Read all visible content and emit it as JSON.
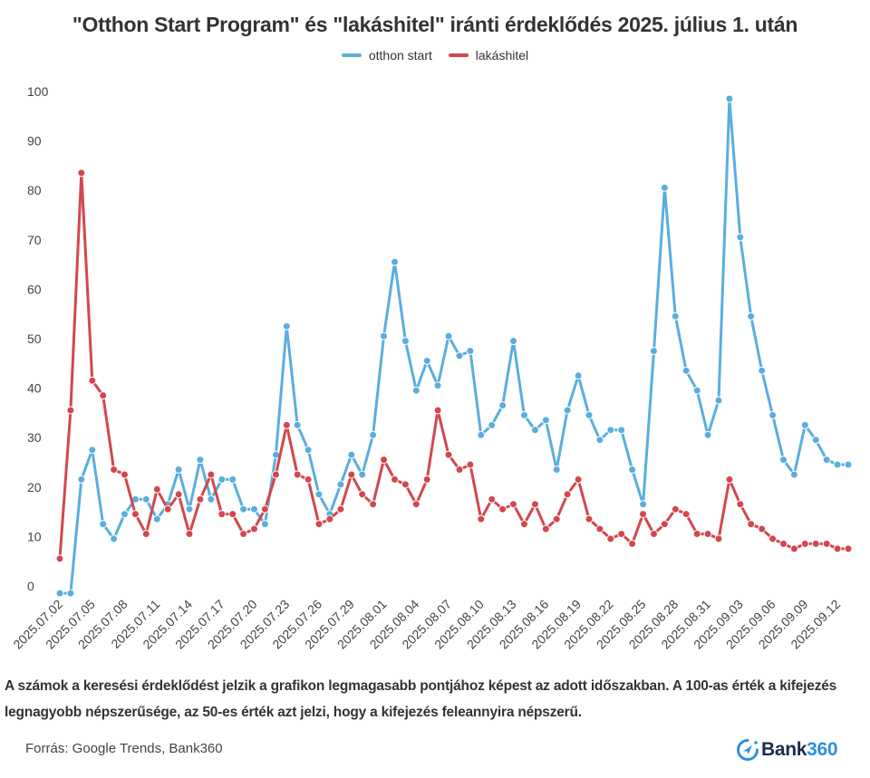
{
  "chart_data": {
    "type": "line",
    "title": "\"Otthon Start Program\" és \"lakáshitel\" iránti érdeklődés 2025. július 1. után",
    "xlabel": "",
    "ylabel": "",
    "ylim": [
      0,
      100
    ],
    "yticks": [
      0,
      10,
      20,
      30,
      40,
      50,
      60,
      70,
      80,
      90,
      100
    ],
    "grid": false,
    "legend_position": "top-center",
    "x_start": "2025.07.02",
    "x_end": "2025.09.13",
    "x_tick_labels": [
      "2025.07.02",
      "2025.07.05",
      "2025.07.08",
      "2025.07.11",
      "2025.07.14",
      "2025.07.17",
      "2025.07.20",
      "2025.07.23",
      "2025.07.26",
      "2025.07.29",
      "2025.08.01",
      "2025.08.04",
      "2025.08.07",
      "2025.08.10",
      "2025.08.13",
      "2025.08.16",
      "2025.08.19",
      "2025.08.22",
      "2025.08.25",
      "2025.08.28",
      "2025.08.31",
      "2025.09.03",
      "2025.09.06",
      "2025.09.09",
      "2025.09.12"
    ],
    "series": [
      {
        "name": "otthon start",
        "color": "#5aaedd",
        "values": [
          0,
          0,
          23,
          29,
          14,
          11,
          16,
          19,
          19,
          15,
          18,
          25,
          17,
          27,
          19,
          23,
          23,
          17,
          17,
          14,
          28,
          54,
          34,
          29,
          20,
          16,
          22,
          28,
          24,
          32,
          52,
          67,
          51,
          41,
          47,
          42,
          52,
          48,
          49,
          32,
          34,
          38,
          51,
          36,
          33,
          35,
          25,
          37,
          44,
          36,
          31,
          33,
          33,
          25,
          18,
          49,
          82,
          56,
          45,
          41,
          32,
          39,
          100,
          72,
          56,
          45,
          36,
          27,
          24,
          34,
          31,
          27,
          26,
          26
        ]
      },
      {
        "name": "lakáshitel",
        "color": "#d2474f",
        "values": [
          7,
          37,
          85,
          43,
          40,
          25,
          24,
          16,
          12,
          21,
          17,
          20,
          12,
          19,
          24,
          16,
          16,
          12,
          13,
          17,
          24,
          34,
          24,
          23,
          14,
          15,
          17,
          24,
          20,
          18,
          27,
          23,
          22,
          18,
          23,
          37,
          28,
          25,
          26,
          15,
          19,
          17,
          18,
          14,
          18,
          13,
          15,
          20,
          23,
          15,
          13,
          11,
          12,
          10,
          16,
          12,
          14,
          17,
          16,
          12,
          12,
          11,
          23,
          18,
          14,
          13,
          11,
          10,
          9,
          10,
          10,
          10,
          9,
          9
        ]
      }
    ]
  },
  "note": "A számok a keresési érdeklődést jelzik a grafikon legmagasabb pontjához képest az adott időszakban. A 100-as érték a kifejezés legnagyobb népszerűsége, az 50-es érték azt jelzi, hogy a kifejezés feleannyira népszerű.",
  "source": "Forrás: Google Trends, Bank360",
  "logo": {
    "icon": "compass-arrow-icon",
    "text_bank": "Bank",
    "text_num": "360"
  }
}
